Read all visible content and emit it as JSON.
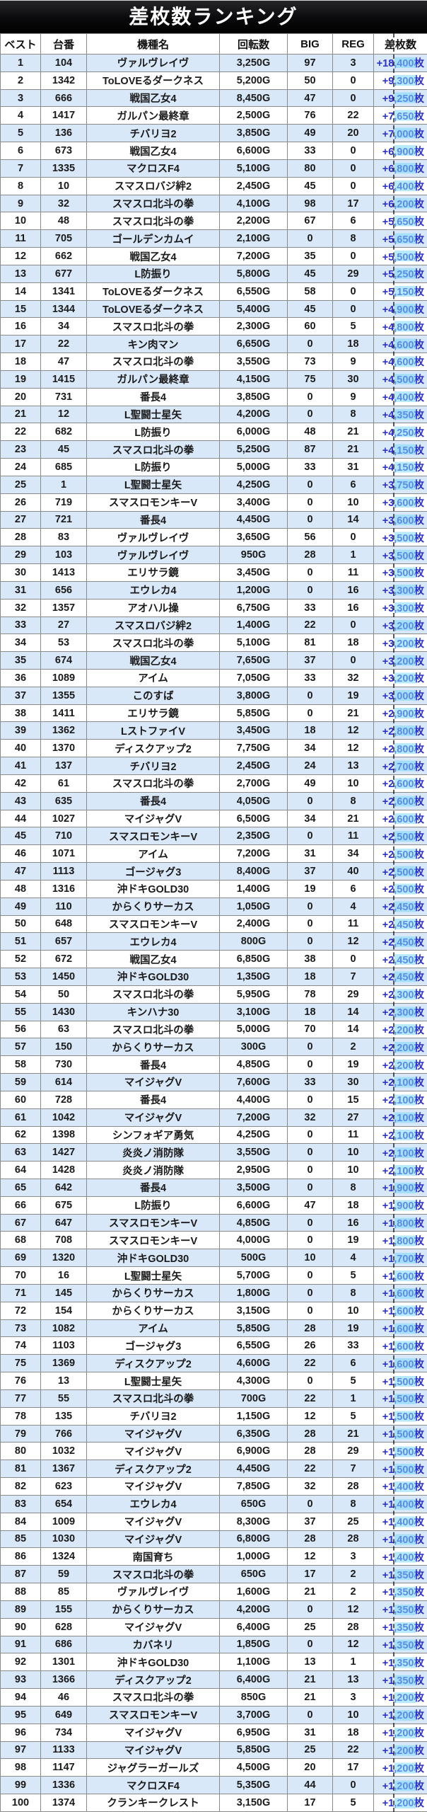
{
  "title": "差枚数ランキング",
  "columns": [
    "ベスト",
    "台番",
    "機種名",
    "回転数",
    "BIG",
    "REG",
    "差枚数"
  ],
  "column_keys": [
    "rank",
    "machine-number",
    "model-name",
    "spins",
    "big",
    "reg",
    "diff"
  ],
  "colors": {
    "accent_blue": "#2a31cc",
    "row_alt": "#d9e8f8",
    "header_bg": "#0d0d0f",
    "header_text": "#ffffff"
  },
  "rows": [
    [
      "1",
      "104",
      "ヴァルヴレイヴ",
      "3,250G",
      "97",
      "3",
      "+18,400枚"
    ],
    [
      "2",
      "1342",
      "ToLOVEるダークネス",
      "5,200G",
      "50",
      "0",
      "+9,300枚"
    ],
    [
      "3",
      "666",
      "戦国乙女4",
      "8,450G",
      "47",
      "0",
      "+9,250枚"
    ],
    [
      "4",
      "1417",
      "ガルパン最終章",
      "2,500G",
      "76",
      "22",
      "+7,650枚"
    ],
    [
      "5",
      "136",
      "チバリヨ2",
      "3,850G",
      "49",
      "20",
      "+7,000枚"
    ],
    [
      "6",
      "673",
      "戦国乙女4",
      "6,600G",
      "33",
      "0",
      "+6,900枚"
    ],
    [
      "7",
      "1335",
      "マクロスF4",
      "5,100G",
      "80",
      "0",
      "+6,800枚"
    ],
    [
      "8",
      "10",
      "スマスロバジ絆2",
      "2,450G",
      "45",
      "0",
      "+6,400枚"
    ],
    [
      "9",
      "32",
      "スマスロ北斗の拳",
      "4,100G",
      "98",
      "17",
      "+6,200枚"
    ],
    [
      "10",
      "48",
      "スマスロ北斗の拳",
      "2,200G",
      "67",
      "6",
      "+5,650枚"
    ],
    [
      "11",
      "705",
      "ゴールデンカムイ",
      "2,100G",
      "0",
      "8",
      "+5,650枚"
    ],
    [
      "12",
      "662",
      "戦国乙女4",
      "7,200G",
      "35",
      "0",
      "+5,500枚"
    ],
    [
      "13",
      "677",
      "L防振り",
      "5,800G",
      "45",
      "29",
      "+5,250枚"
    ],
    [
      "14",
      "1341",
      "ToLOVEるダークネス",
      "6,550G",
      "58",
      "0",
      "+5,150枚"
    ],
    [
      "15",
      "1344",
      "ToLOVEるダークネス",
      "5,400G",
      "45",
      "0",
      "+4,900枚"
    ],
    [
      "16",
      "34",
      "スマスロ北斗の拳",
      "2,300G",
      "60",
      "5",
      "+4,800枚"
    ],
    [
      "17",
      "22",
      "キン肉マン",
      "6,650G",
      "0",
      "18",
      "+4,600枚"
    ],
    [
      "18",
      "47",
      "スマスロ北斗の拳",
      "3,550G",
      "73",
      "9",
      "+4,600枚"
    ],
    [
      "19",
      "1415",
      "ガルパン最終章",
      "4,150G",
      "75",
      "30",
      "+4,500枚"
    ],
    [
      "20",
      "731",
      "番長4",
      "3,850G",
      "0",
      "9",
      "+4,400枚"
    ],
    [
      "21",
      "12",
      "L聖闘士星矢",
      "4,200G",
      "0",
      "8",
      "+4,350枚"
    ],
    [
      "22",
      "682",
      "L防振り",
      "6,000G",
      "48",
      "21",
      "+4,250枚"
    ],
    [
      "23",
      "45",
      "スマスロ北斗の拳",
      "5,250G",
      "87",
      "21",
      "+4,150枚"
    ],
    [
      "24",
      "685",
      "L防振り",
      "5,000G",
      "33",
      "31",
      "+4,150枚"
    ],
    [
      "25",
      "1",
      "L聖闘士星矢",
      "4,250G",
      "0",
      "6",
      "+3,750枚"
    ],
    [
      "26",
      "719",
      "スマスロモンキーV",
      "3,400G",
      "0",
      "10",
      "+3,600枚"
    ],
    [
      "27",
      "721",
      "番長4",
      "4,450G",
      "0",
      "14",
      "+3,600枚"
    ],
    [
      "28",
      "83",
      "ヴァルヴレイヴ",
      "3,650G",
      "56",
      "0",
      "+3,500枚"
    ],
    [
      "29",
      "103",
      "ヴァルヴレイヴ",
      "950G",
      "28",
      "1",
      "+3,500枚"
    ],
    [
      "30",
      "1413",
      "エリサラ鏡",
      "3,450G",
      "0",
      "11",
      "+3,500枚"
    ],
    [
      "31",
      "656",
      "エウレカ4",
      "1,200G",
      "0",
      "16",
      "+3,300枚"
    ],
    [
      "32",
      "1357",
      "アオハル操",
      "6,750G",
      "33",
      "16",
      "+3,300枚"
    ],
    [
      "33",
      "27",
      "スマスロバジ絆2",
      "1,400G",
      "22",
      "0",
      "+3,200枚"
    ],
    [
      "34",
      "53",
      "スマスロ北斗の拳",
      "5,100G",
      "81",
      "18",
      "+3,200枚"
    ],
    [
      "35",
      "674",
      "戦国乙女4",
      "7,650G",
      "37",
      "0",
      "+3,200枚"
    ],
    [
      "36",
      "1089",
      "アイム",
      "7,050G",
      "33",
      "32",
      "+3,200枚"
    ],
    [
      "37",
      "1355",
      "このすば",
      "3,800G",
      "0",
      "19",
      "+3,000枚"
    ],
    [
      "38",
      "1411",
      "エリサラ鏡",
      "5,850G",
      "0",
      "21",
      "+2,900枚"
    ],
    [
      "39",
      "1362",
      "LストファイV",
      "3,450G",
      "18",
      "12",
      "+2,800枚"
    ],
    [
      "40",
      "1370",
      "ディスクアップ2",
      "7,750G",
      "34",
      "12",
      "+2,800枚"
    ],
    [
      "41",
      "137",
      "チバリヨ2",
      "2,450G",
      "24",
      "13",
      "+2,700枚"
    ],
    [
      "42",
      "61",
      "スマスロ北斗の拳",
      "2,700G",
      "49",
      "10",
      "+2,600枚"
    ],
    [
      "43",
      "635",
      "番長4",
      "4,050G",
      "0",
      "8",
      "+2,600枚"
    ],
    [
      "44",
      "1027",
      "マイジャグV",
      "6,500G",
      "34",
      "21",
      "+2,600枚"
    ],
    [
      "45",
      "710",
      "スマスロモンキーV",
      "2,350G",
      "0",
      "11",
      "+2,500枚"
    ],
    [
      "46",
      "1071",
      "アイム",
      "7,200G",
      "31",
      "34",
      "+2,500枚"
    ],
    [
      "47",
      "1113",
      "ゴージャグ3",
      "8,400G",
      "37",
      "40",
      "+2,500枚"
    ],
    [
      "48",
      "1316",
      "沖ドキGOLD30",
      "1,400G",
      "19",
      "6",
      "+2,500枚"
    ],
    [
      "49",
      "110",
      "からくりサーカス",
      "1,050G",
      "0",
      "4",
      "+2,450枚"
    ],
    [
      "50",
      "648",
      "スマスロモンキーV",
      "2,400G",
      "0",
      "11",
      "+2,450枚"
    ],
    [
      "51",
      "657",
      "エウレカ4",
      "800G",
      "0",
      "12",
      "+2,450枚"
    ],
    [
      "52",
      "672",
      "戦国乙女4",
      "6,850G",
      "38",
      "0",
      "+2,450枚"
    ],
    [
      "53",
      "1450",
      "沖ドキGOLD30",
      "1,350G",
      "18",
      "7",
      "+2,450枚"
    ],
    [
      "54",
      "50",
      "スマスロ北斗の拳",
      "5,950G",
      "78",
      "29",
      "+2,300枚"
    ],
    [
      "55",
      "1430",
      "キンハナ30",
      "3,100G",
      "18",
      "14",
      "+2,300枚"
    ],
    [
      "56",
      "63",
      "スマスロ北斗の拳",
      "5,000G",
      "70",
      "14",
      "+2,200枚"
    ],
    [
      "57",
      "150",
      "からくりサーカス",
      "300G",
      "0",
      "2",
      "+2,200枚"
    ],
    [
      "58",
      "730",
      "番長4",
      "4,850G",
      "0",
      "19",
      "+2,200枚"
    ],
    [
      "59",
      "614",
      "マイジャグV",
      "7,600G",
      "33",
      "30",
      "+2,100枚"
    ],
    [
      "60",
      "728",
      "番長4",
      "4,400G",
      "0",
      "15",
      "+2,100枚"
    ],
    [
      "61",
      "1042",
      "マイジャグV",
      "7,200G",
      "32",
      "27",
      "+2,100枚"
    ],
    [
      "62",
      "1398",
      "シンフォギア勇気",
      "4,250G",
      "0",
      "11",
      "+2,100枚"
    ],
    [
      "63",
      "1427",
      "炎炎ノ消防隊",
      "3,550G",
      "0",
      "10",
      "+2,100枚"
    ],
    [
      "64",
      "1428",
      "炎炎ノ消防隊",
      "2,950G",
      "0",
      "10",
      "+2,100枚"
    ],
    [
      "65",
      "642",
      "番長4",
      "3,500G",
      "0",
      "8",
      "+1,900枚"
    ],
    [
      "66",
      "675",
      "L防振り",
      "6,600G",
      "47",
      "18",
      "+1,900枚"
    ],
    [
      "67",
      "647",
      "スマスロモンキーV",
      "4,850G",
      "0",
      "16",
      "+1,800枚"
    ],
    [
      "68",
      "708",
      "スマスロモンキーV",
      "4,000G",
      "0",
      "19",
      "+1,800枚"
    ],
    [
      "69",
      "1320",
      "沖ドキGOLD30",
      "500G",
      "10",
      "4",
      "+1,700枚"
    ],
    [
      "70",
      "16",
      "L聖闘士星矢",
      "5,700G",
      "0",
      "5",
      "+1,600枚"
    ],
    [
      "71",
      "145",
      "からくりサーカス",
      "1,800G",
      "0",
      "8",
      "+1,600枚"
    ],
    [
      "72",
      "154",
      "からくりサーカス",
      "3,150G",
      "0",
      "10",
      "+1,600枚"
    ],
    [
      "73",
      "1082",
      "アイム",
      "5,850G",
      "28",
      "19",
      "+1,600枚"
    ],
    [
      "74",
      "1103",
      "ゴージャグ3",
      "6,550G",
      "26",
      "33",
      "+1,600枚"
    ],
    [
      "75",
      "1369",
      "ディスクアップ2",
      "4,600G",
      "22",
      "6",
      "+1,600枚"
    ],
    [
      "76",
      "13",
      "L聖闘士星矢",
      "4,300G",
      "0",
      "5",
      "+1,500枚"
    ],
    [
      "77",
      "55",
      "スマスロ北斗の拳",
      "700G",
      "22",
      "1",
      "+1,500枚"
    ],
    [
      "78",
      "135",
      "チバリヨ2",
      "1,150G",
      "12",
      "5",
      "+1,500枚"
    ],
    [
      "79",
      "766",
      "マイジャグV",
      "6,350G",
      "28",
      "21",
      "+1,500枚"
    ],
    [
      "80",
      "1032",
      "マイジャグV",
      "6,900G",
      "28",
      "29",
      "+1,500枚"
    ],
    [
      "81",
      "1367",
      "ディスクアップ2",
      "4,450G",
      "22",
      "7",
      "+1,500枚"
    ],
    [
      "82",
      "623",
      "マイジャグV",
      "7,850G",
      "32",
      "28",
      "+1,400枚"
    ],
    [
      "83",
      "654",
      "エウレカ4",
      "650G",
      "0",
      "8",
      "+1,400枚"
    ],
    [
      "84",
      "1009",
      "マイジャグV",
      "8,300G",
      "37",
      "25",
      "+1,400枚"
    ],
    [
      "85",
      "1030",
      "マイジャグV",
      "6,800G",
      "28",
      "28",
      "+1,400枚"
    ],
    [
      "86",
      "1324",
      "南国育ち",
      "1,000G",
      "12",
      "3",
      "+1,400枚"
    ],
    [
      "87",
      "59",
      "スマスロ北斗の拳",
      "650G",
      "17",
      "2",
      "+1,350枚"
    ],
    [
      "88",
      "85",
      "ヴァルヴレイヴ",
      "1,600G",
      "21",
      "2",
      "+1,350枚"
    ],
    [
      "89",
      "155",
      "からくりサーカス",
      "4,200G",
      "0",
      "12",
      "+1,350枚"
    ],
    [
      "90",
      "628",
      "マイジャグV",
      "6,400G",
      "25",
      "28",
      "+1,350枚"
    ],
    [
      "91",
      "686",
      "カバネリ",
      "1,850G",
      "0",
      "12",
      "+1,350枚"
    ],
    [
      "92",
      "1301",
      "沖ドキGOLD30",
      "1,100G",
      "13",
      "1",
      "+1,350枚"
    ],
    [
      "93",
      "1366",
      "ディスクアップ2",
      "6,400G",
      "21",
      "13",
      "+1,350枚"
    ],
    [
      "94",
      "46",
      "スマスロ北斗の拳",
      "850G",
      "21",
      "3",
      "+1,200枚"
    ],
    [
      "95",
      "649",
      "スマスロモンキーV",
      "3,700G",
      "0",
      "10",
      "+1,200枚"
    ],
    [
      "96",
      "734",
      "マイジャグV",
      "6,950G",
      "31",
      "18",
      "+1,200枚"
    ],
    [
      "97",
      "1133",
      "マイジャグV",
      "5,850G",
      "25",
      "22",
      "+1,200枚"
    ],
    [
      "98",
      "1147",
      "ジャグラーガールズ",
      "4,500G",
      "20",
      "17",
      "+1,200枚"
    ],
    [
      "99",
      "1336",
      "マクロスF4",
      "5,350G",
      "44",
      "0",
      "+1,200枚"
    ],
    [
      "100",
      "1374",
      "クランキークレスト",
      "3,150G",
      "17",
      "5",
      "+1,200枚"
    ]
  ]
}
